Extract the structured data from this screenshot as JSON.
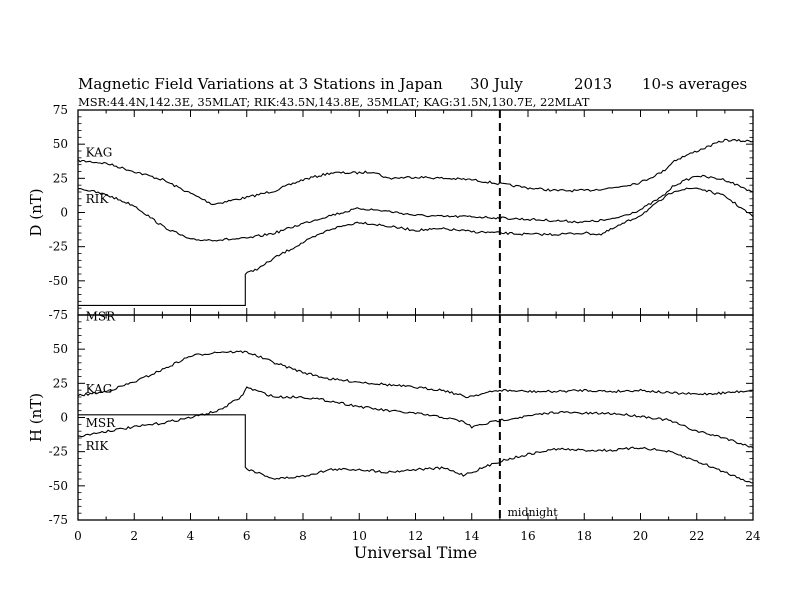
{
  "header": {
    "title": "Magnetic Field Variations at 3 Stations in Japan",
    "date": "30 July",
    "year": "2013",
    "averaging": "10-s averages",
    "subtitle": "MSR:44.4N,142.3E, 35MLAT;  RIK:43.5N,143.8E, 35MLAT;  KAG:31.5N,130.7E, 22MLAT"
  },
  "chart_data": [
    {
      "type": "line",
      "panel": "top",
      "ylabel": "D (nT)",
      "ylim": [
        -75,
        75
      ],
      "yticks": [
        75,
        50,
        25,
        0,
        -25,
        -50,
        -75
      ],
      "xlim": [
        0,
        24
      ],
      "series": [
        {
          "name": "KAG",
          "x": [
            0,
            1,
            2,
            3,
            4,
            4.8,
            5.5,
            6,
            7,
            8,
            9,
            10,
            10.5,
            11,
            12,
            13,
            14,
            15,
            16,
            17,
            18,
            19,
            20,
            20.8,
            21.2,
            22,
            23,
            24
          ],
          "values": [
            38,
            36,
            30,
            24,
            14,
            6,
            9,
            11,
            16,
            24,
            29,
            29,
            30,
            25,
            26,
            25,
            24,
            21,
            18,
            16,
            16,
            18,
            22,
            30,
            38,
            45,
            53,
            52
          ]
        },
        {
          "name": "RIK",
          "x": [
            0,
            1,
            2,
            3,
            4,
            5,
            6,
            7,
            8,
            9,
            10,
            11,
            12,
            13,
            14,
            15,
            16,
            17,
            18,
            19,
            20,
            20.8,
            21.2,
            22,
            23,
            24
          ],
          "values": [
            18,
            13,
            5,
            -10,
            -20,
            -20,
            -19,
            -15,
            -8,
            -2,
            3,
            1,
            -2,
            -3,
            -3,
            -4,
            -5,
            -6,
            -7,
            -5,
            2,
            12,
            20,
            27,
            24,
            15
          ]
        },
        {
          "name": "MSR",
          "x": [
            0,
            2,
            4,
            5.95,
            5.95,
            6.5,
            7,
            8,
            9,
            10,
            11,
            12,
            13,
            14,
            15,
            16,
            17,
            18,
            18.6,
            19,
            20,
            20.8,
            21.2,
            22,
            23,
            24
          ],
          "values": [
            -68,
            -68,
            -68,
            -68,
            -45,
            -40,
            -33,
            -22,
            -12,
            -7,
            -10,
            -13,
            -12,
            -14,
            -15,
            -16,
            -16,
            -15,
            -16,
            -12,
            -2,
            10,
            16,
            18,
            12,
            -3
          ]
        }
      ],
      "annotations": [
        {
          "text": "KAG",
          "x": 0.2,
          "y": 44
        },
        {
          "text": "RIK",
          "x": 0.2,
          "y": 10
        },
        {
          "text": "MSR",
          "x": 0.2,
          "y": -76
        }
      ]
    },
    {
      "type": "line",
      "panel": "bottom",
      "ylabel": "H (nT)",
      "ylim": [
        -75,
        75
      ],
      "yticks": [
        50,
        25,
        0,
        -25,
        -50,
        -75
      ],
      "xlim": [
        0,
        24
      ],
      "xticks": [
        0,
        2,
        4,
        6,
        8,
        10,
        12,
        14,
        16,
        18,
        20,
        22,
        24
      ],
      "xlabel": "Universal Time",
      "series": [
        {
          "name": "KAG",
          "x": [
            0,
            1,
            2,
            3,
            4,
            5,
            6,
            7,
            8,
            9,
            10,
            11,
            12,
            13,
            13.8,
            15,
            16,
            17,
            18,
            19,
            20,
            21,
            22,
            23,
            24
          ],
          "values": [
            16,
            19,
            26,
            35,
            45,
            48,
            48,
            40,
            33,
            28,
            26,
            24,
            22,
            20,
            15,
            20,
            19,
            19,
            20,
            19,
            20,
            18,
            17,
            18,
            20
          ]
        },
        {
          "name": "RIK",
          "x": [
            0,
            1,
            2,
            3,
            4,
            5,
            5.8,
            6,
            7,
            8,
            9,
            10,
            11,
            12,
            13,
            13.7,
            14,
            15,
            16,
            17,
            18,
            19,
            20,
            21,
            22,
            23,
            24
          ],
          "values": [
            -14,
            -10,
            -7,
            -4,
            0,
            5,
            15,
            22,
            15,
            15,
            12,
            8,
            5,
            3,
            0,
            -3,
            -7,
            -2,
            1,
            4,
            3,
            3,
            1,
            -2,
            -10,
            -15,
            -22
          ]
        },
        {
          "name": "MSR",
          "x": [
            0,
            2,
            4,
            5.95,
            5.95,
            7,
            8,
            9,
            10,
            11,
            12,
            13,
            13.7,
            14,
            15,
            16,
            17,
            18,
            19,
            20,
            21,
            22,
            23,
            24
          ],
          "values": [
            2,
            2,
            2,
            2,
            -37,
            -45,
            -43,
            -38,
            -38,
            -40,
            -38,
            -37,
            -42,
            -40,
            -32,
            -27,
            -23,
            -24,
            -24,
            -22,
            -25,
            -32,
            -40,
            -48
          ]
        }
      ],
      "annotations": [
        {
          "text": "KAG",
          "x": 0.2,
          "y": 21
        },
        {
          "text": "MSR",
          "x": 0.2,
          "y": -4
        },
        {
          "text": "RIK",
          "x": 0.2,
          "y": -21
        },
        {
          "text": "midnight",
          "x": 15.2,
          "y": -69
        }
      ]
    }
  ],
  "midnight_ut": 15
}
